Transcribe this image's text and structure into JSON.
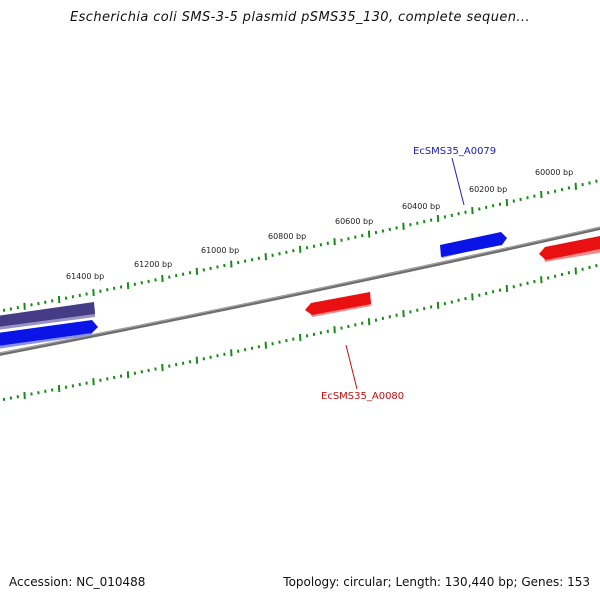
{
  "title": "Escherichia coli SMS-3-5 plasmid pSMS35_130, complete sequen...",
  "footer": {
    "accession": "Accession: NC_010488",
    "summary": "Topology: circular; Length: 130,440 bp; Genes: 153"
  },
  "colors": {
    "forward_strand": "#0a14e6",
    "reverse_strand": "#e81010",
    "other_gene": "#4a4088",
    "backbone": "#7a7a7a",
    "ticks": "#1a8a1a"
  },
  "scale": {
    "labels": [
      "61400 bp",
      "61200 bp",
      "61000 bp",
      "60800 bp",
      "60600 bp",
      "60400 bp",
      "60200 bp",
      "60000 bp"
    ]
  },
  "genes": {
    "labels": [
      "EcSMS35_A0079",
      "EcSMS35_A0080"
    ]
  }
}
